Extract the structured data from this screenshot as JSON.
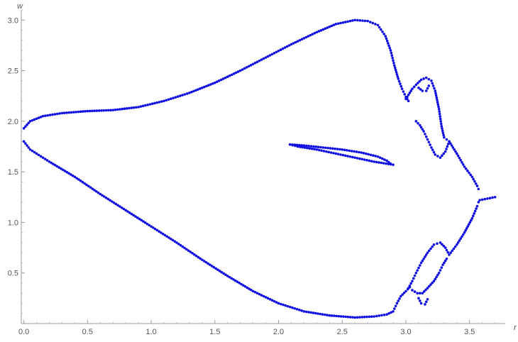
{
  "chart_data": {
    "type": "scatter",
    "title": "",
    "xlabel": "r",
    "ylabel": "w",
    "xlim": [
      -0.02,
      3.78
    ],
    "ylim": [
      0.0,
      3.1
    ],
    "grid": false,
    "x_ticks": [
      {
        "value": 0.0,
        "label": "0.0"
      },
      {
        "value": 0.5,
        "label": "0.5"
      },
      {
        "value": 1.0,
        "label": "1.0"
      },
      {
        "value": 1.5,
        "label": "1.5"
      },
      {
        "value": 2.0,
        "label": "2.0"
      },
      {
        "value": 2.5,
        "label": "2.5"
      },
      {
        "value": 3.0,
        "label": "3.0"
      },
      {
        "value": 3.5,
        "label": "3.5"
      }
    ],
    "y_ticks": [
      {
        "value": 0.5,
        "label": "0.5"
      },
      {
        "value": 1.0,
        "label": "1.0"
      },
      {
        "value": 1.5,
        "label": "1.5"
      },
      {
        "value": 2.0,
        "label": "2.0"
      },
      {
        "value": 2.5,
        "label": "2.5"
      },
      {
        "value": 3.0,
        "label": "3.0"
      }
    ],
    "point_color": "#1010e0",
    "curves": [
      {
        "name": "",
        "points": [
          [
            0.0,
            1.93
          ],
          [
            0.05,
            2.0
          ],
          [
            0.15,
            2.05
          ],
          [
            0.3,
            2.08
          ],
          [
            0.5,
            2.1
          ],
          [
            0.7,
            2.11
          ],
          [
            0.9,
            2.14
          ],
          [
            1.1,
            2.2
          ],
          [
            1.3,
            2.28
          ],
          [
            1.5,
            2.38
          ],
          [
            1.7,
            2.5
          ],
          [
            1.9,
            2.63
          ],
          [
            2.1,
            2.76
          ],
          [
            2.3,
            2.88
          ],
          [
            2.45,
            2.96
          ],
          [
            2.6,
            3.0
          ],
          [
            2.7,
            2.99
          ],
          [
            2.78,
            2.95
          ],
          [
            2.84,
            2.84
          ],
          [
            2.88,
            2.7
          ],
          [
            2.91,
            2.55
          ],
          [
            2.94,
            2.42
          ],
          [
            2.97,
            2.32
          ],
          [
            3.0,
            2.24
          ],
          [
            3.02,
            2.2
          ]
        ]
      },
      {
        "name": "",
        "points": [
          [
            0.0,
            1.8
          ],
          [
            0.05,
            1.72
          ],
          [
            0.2,
            1.6
          ],
          [
            0.4,
            1.45
          ],
          [
            0.6,
            1.28
          ],
          [
            0.8,
            1.12
          ],
          [
            1.0,
            0.96
          ],
          [
            1.2,
            0.8
          ],
          [
            1.4,
            0.63
          ],
          [
            1.6,
            0.47
          ],
          [
            1.8,
            0.32
          ],
          [
            2.0,
            0.2
          ],
          [
            2.2,
            0.12
          ],
          [
            2.4,
            0.08
          ],
          [
            2.6,
            0.06
          ],
          [
            2.75,
            0.07
          ],
          [
            2.85,
            0.09
          ],
          [
            2.9,
            0.12
          ],
          [
            2.93,
            0.2
          ],
          [
            2.96,
            0.27
          ],
          [
            3.0,
            0.32
          ],
          [
            3.03,
            0.36
          ]
        ]
      },
      {
        "name": "",
        "points": [
          [
            3.0,
            2.22
          ],
          [
            3.05,
            2.32
          ],
          [
            3.08,
            2.36
          ],
          [
            3.12,
            2.41
          ],
          [
            3.16,
            2.43
          ],
          [
            3.2,
            2.4
          ],
          [
            3.23,
            2.3
          ],
          [
            3.26,
            2.12
          ],
          [
            3.28,
            1.95
          ],
          [
            3.3,
            1.84
          ],
          [
            3.34,
            1.8
          ],
          [
            3.4,
            1.68
          ],
          [
            3.46,
            1.55
          ],
          [
            3.52,
            1.45
          ],
          [
            3.56,
            1.36
          ],
          [
            3.57,
            1.33
          ]
        ]
      },
      {
        "name": "",
        "points": [
          [
            3.08,
            2.0
          ],
          [
            3.11,
            1.96
          ],
          [
            3.14,
            1.9
          ],
          [
            3.17,
            1.82
          ],
          [
            3.2,
            1.74
          ],
          [
            3.23,
            1.67
          ],
          [
            3.27,
            1.64
          ],
          [
            3.31,
            1.7
          ],
          [
            3.34,
            1.8
          ]
        ]
      },
      {
        "name": "",
        "points": [
          [
            3.1,
            2.33
          ],
          [
            3.13,
            2.3
          ],
          [
            3.16,
            2.3
          ],
          [
            3.18,
            2.35
          ]
        ]
      },
      {
        "name": "",
        "points": [
          [
            3.02,
            0.35
          ],
          [
            3.05,
            0.42
          ],
          [
            3.08,
            0.5
          ],
          [
            3.12,
            0.6
          ],
          [
            3.17,
            0.7
          ],
          [
            3.22,
            0.78
          ],
          [
            3.27,
            0.8
          ],
          [
            3.31,
            0.75
          ],
          [
            3.34,
            0.68
          ],
          [
            3.4,
            0.78
          ],
          [
            3.46,
            0.9
          ],
          [
            3.52,
            1.04
          ],
          [
            3.56,
            1.16
          ],
          [
            3.57,
            1.2
          ]
        ]
      },
      {
        "name": "",
        "points": [
          [
            3.05,
            0.33
          ],
          [
            3.09,
            0.3
          ],
          [
            3.13,
            0.3
          ],
          [
            3.17,
            0.35
          ],
          [
            3.22,
            0.42
          ],
          [
            3.26,
            0.5
          ],
          [
            3.29,
            0.58
          ],
          [
            3.32,
            0.64
          ]
        ]
      },
      {
        "name": "",
        "points": [
          [
            3.1,
            0.25
          ],
          [
            3.12,
            0.2
          ],
          [
            3.15,
            0.19
          ],
          [
            3.17,
            0.24
          ]
        ]
      },
      {
        "name": "",
        "points": [
          [
            3.58,
            1.22
          ],
          [
            3.62,
            1.23
          ],
          [
            3.66,
            1.24
          ],
          [
            3.7,
            1.25
          ]
        ]
      },
      {
        "name": "",
        "points": [
          [
            2.09,
            1.77
          ],
          [
            2.2,
            1.76
          ],
          [
            2.35,
            1.74
          ],
          [
            2.5,
            1.72
          ],
          [
            2.65,
            1.69
          ],
          [
            2.78,
            1.65
          ],
          [
            2.85,
            1.61
          ],
          [
            2.88,
            1.58
          ],
          [
            2.9,
            1.57
          ],
          [
            2.75,
            1.6
          ],
          [
            2.6,
            1.64
          ],
          [
            2.45,
            1.68
          ],
          [
            2.3,
            1.72
          ],
          [
            2.15,
            1.75
          ],
          [
            2.09,
            1.77
          ]
        ]
      }
    ]
  }
}
